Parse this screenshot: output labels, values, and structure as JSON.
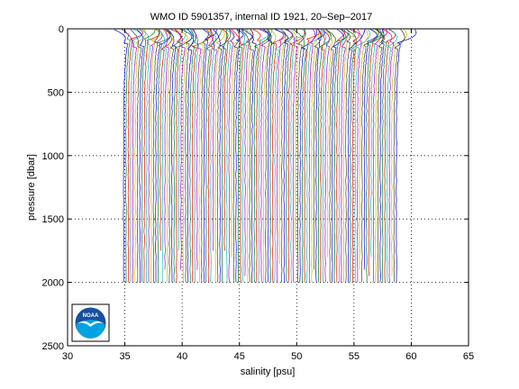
{
  "chart_data": {
    "type": "line",
    "title": "WMO ID 5901357, internal ID 1921, 20–Sep–2017",
    "xlabel": "salinity [psu]",
    "ylabel": "pressure [dbar]",
    "xlim": [
      30,
      65
    ],
    "ylim": [
      0,
      2500
    ],
    "y_reversed": true,
    "grid": true,
    "grid_style": "dotted",
    "x_ticks": [
      30,
      35,
      40,
      45,
      50,
      55,
      60,
      65
    ],
    "y_ticks": [
      0,
      500,
      1000,
      1500,
      2000,
      2500
    ],
    "x_tick_labels": [
      "30",
      "35",
      "40",
      "45",
      "50",
      "55",
      "60",
      "65"
    ],
    "y_tick_labels": [
      "0",
      "500",
      "1000",
      "1500",
      "2000",
      "2500"
    ],
    "offset_profiles": {
      "count": 120,
      "first_deep_salinity": 34.9,
      "offset_step_psu": 0.2,
      "pressure_range": [
        5,
        2000
      ],
      "surface_salinity_offset_range": [
        -1.0,
        1.6
      ],
      "halocline_pressure": 120
    },
    "series_colors": [
      "#0000ff",
      "#008000",
      "#ff0000",
      "#00bfbf",
      "#bf00bf",
      "#bfbf00",
      "#404040"
    ],
    "logo": {
      "name": "noaa-logo",
      "text": "NOAA",
      "colors": {
        "outer": "#1a4f9c",
        "inner": "#00a3e0",
        "bird": "#ffffff"
      }
    }
  }
}
